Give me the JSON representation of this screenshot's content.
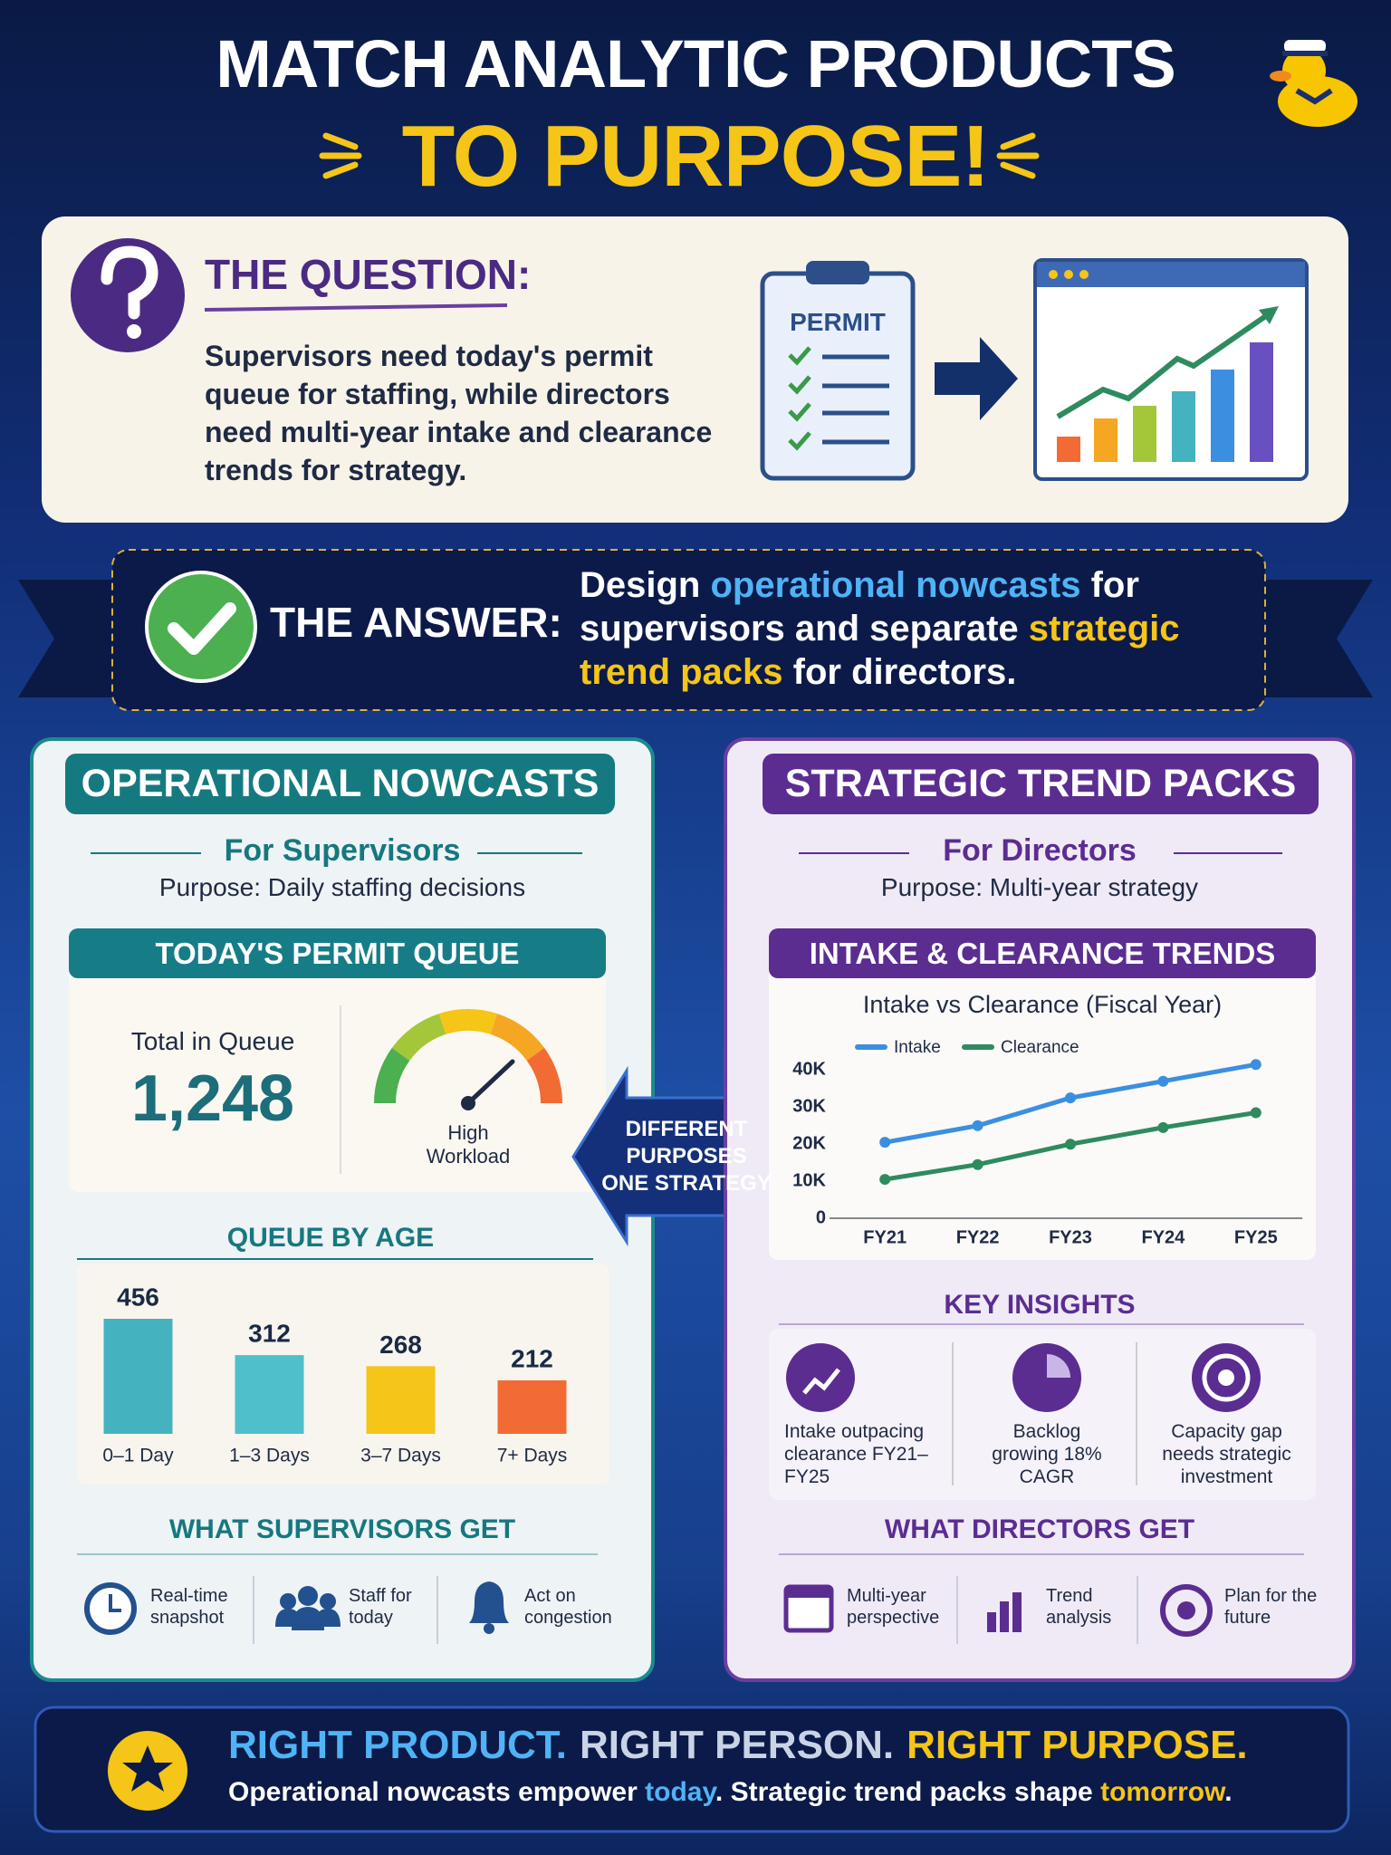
{
  "header": {
    "title_line1": "MATCH ANALYTIC PRODUCTS",
    "title_line2": "TO PURPOSE!"
  },
  "question": {
    "label": "THE QUESTION:",
    "text": "Supervisors need today's permit queue for staffing, while directors need multi-year intake and clearance trends for strategy.",
    "illustration_label": "PERMIT"
  },
  "answer": {
    "label": "THE ANSWER:",
    "text": [
      "Design ",
      "operational nowcasts",
      " for supervisors and separate ",
      "strategic trend packs",
      " for directors."
    ]
  },
  "operational": {
    "title": "OPERATIONAL NOWCASTS",
    "audience": "For Supervisors",
    "purpose": "Purpose: Daily staffing decisions",
    "queue_panel": {
      "title": "TODAY'S PERMIT QUEUE",
      "total_label": "Total in Queue",
      "total": "1,248",
      "gauge_label": "High Workload"
    },
    "gets_title": "WHAT SUPERVISORS GET",
    "gets": [
      "Real-time snapshot",
      "Staff for today",
      "Act on congestion"
    ]
  },
  "center_badge": [
    "DIFFERENT",
    "PURPOSES",
    "ONE STRATEGY"
  ],
  "strategic": {
    "title": "STRATEGIC TREND PACKS",
    "audience": "For Directors",
    "purpose": "Purpose: Multi-year strategy",
    "trends_title": "INTAKE & CLEARANCE TRENDS",
    "insights_title": "KEY INSIGHTS",
    "insights": [
      "Intake outpacing clearance FY21–FY25",
      "Backlog growing 18% CAGR",
      "Capacity gap needs strategic investment"
    ],
    "gets_title": "WHAT DIRECTORS GET",
    "gets": [
      "Multi-year perspective",
      "Trend analysis",
      "Plan for the future"
    ]
  },
  "footer": {
    "headline": [
      "RIGHT PRODUCT.",
      "RIGHT PERSON.",
      "RIGHT PURPOSE."
    ],
    "text": [
      "Operational nowcasts empower ",
      "today",
      ". Strategic trend packs shape ",
      "tomorrow",
      "."
    ]
  },
  "chart_data": [
    {
      "type": "bar",
      "title": "QUEUE BY AGE",
      "categories": [
        "0–1 Day",
        "1–3 Days",
        "3–7 Days",
        "7+ Days"
      ],
      "values": [
        456,
        312,
        268,
        212
      ],
      "colors": [
        "#45b3bf",
        "#4fbfcb",
        "#f5c518",
        "#f26b35"
      ]
    },
    {
      "type": "line",
      "title": "Intake vs Clearance (Fiscal Year)",
      "categories": [
        "FY21",
        "FY22",
        "FY23",
        "FY24",
        "FY25"
      ],
      "series": [
        {
          "name": "Intake",
          "color": "#3b8fe0",
          "values": [
            20500,
            25000,
            32500,
            37000,
            41500
          ]
        },
        {
          "name": "Clearance",
          "color": "#2e8b5e",
          "values": [
            10500,
            14500,
            20000,
            24500,
            28500
          ]
        }
      ],
      "ylim": [
        0,
        45000
      ],
      "yticks": [
        0,
        {
          "value": 10000,
          "label": "10K"
        },
        {
          "value": 20000,
          "label": "20K"
        },
        {
          "value": 30000,
          "label": "30K"
        },
        {
          "value": 40000,
          "label": "40K"
        }
      ],
      "grid": false
    }
  ]
}
